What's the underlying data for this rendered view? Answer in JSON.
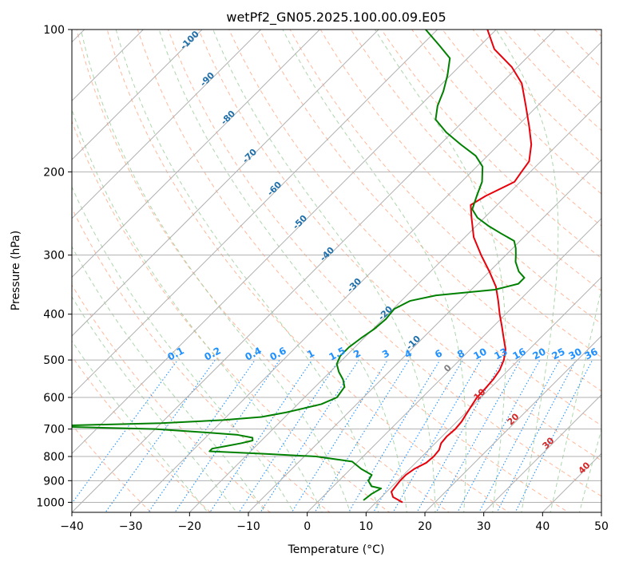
{
  "chart_data": {
    "type": "line",
    "title": "wetPf2_GN05.2025.100.00.09.E05",
    "xlabel": "Temperature (°C)",
    "ylabel": "Pressure (hPa)",
    "xlim": [
      -40,
      50
    ],
    "ylim": [
      1050,
      100
    ],
    "y_scale": "log",
    "skew": "skew-T",
    "grid": true,
    "x_ticks": [
      -40,
      -30,
      -20,
      -10,
      0,
      10,
      20,
      30,
      40,
      50
    ],
    "y_ticks": [
      100,
      200,
      300,
      400,
      500,
      600,
      700,
      800,
      900,
      1000
    ],
    "series": [
      {
        "color": "#e8000b",
        "points": [
          [
            1000,
            14.5
          ],
          [
            975,
            12.0
          ],
          [
            950,
            10.8
          ],
          [
            925,
            10.6
          ],
          [
            900,
            10.4
          ],
          [
            875,
            10.4
          ],
          [
            850,
            10.8
          ],
          [
            825,
            11.8
          ],
          [
            800,
            12.0
          ],
          [
            775,
            11.8
          ],
          [
            750,
            11.0
          ],
          [
            725,
            10.8
          ],
          [
            700,
            11.0
          ],
          [
            675,
            10.8
          ],
          [
            650,
            10.3
          ],
          [
            625,
            9.8
          ],
          [
            600,
            9.3
          ],
          [
            575,
            9.2
          ],
          [
            550,
            9.0
          ],
          [
            525,
            8.5
          ],
          [
            500,
            7.5
          ],
          [
            475,
            6.0
          ],
          [
            450,
            3.8
          ],
          [
            425,
            1.5
          ],
          [
            400,
            -1.0
          ],
          [
            375,
            -3.5
          ],
          [
            350,
            -6.3
          ],
          [
            325,
            -10.0
          ],
          [
            300,
            -14.2
          ],
          [
            275,
            -18.5
          ],
          [
            250,
            -22.2
          ],
          [
            235,
            -24.5
          ],
          [
            225,
            -23.5
          ],
          [
            210,
            -21.0
          ],
          [
            200,
            -21.5
          ],
          [
            190,
            -22.0
          ],
          [
            175,
            -24.5
          ],
          [
            160,
            -28.0
          ],
          [
            145,
            -32.0
          ],
          [
            130,
            -36.5
          ],
          [
            120,
            -41.0
          ],
          [
            110,
            -47.0
          ],
          [
            100,
            -51.5
          ]
        ]
      },
      {
        "color": "#008000",
        "points": [
          [
            990,
            7.5
          ],
          [
            960,
            7.8
          ],
          [
            935,
            8.5
          ],
          [
            925,
            6.5
          ],
          [
            900,
            5.0
          ],
          [
            875,
            4.6
          ],
          [
            850,
            1.8
          ],
          [
            820,
            -1.0
          ],
          [
            800,
            -8.0
          ],
          [
            790,
            -17.0
          ],
          [
            780,
            -27.0
          ],
          [
            770,
            -27.0
          ],
          [
            760,
            -25.0
          ],
          [
            750,
            -23.0
          ],
          [
            740,
            -21.5
          ],
          [
            730,
            -22.0
          ],
          [
            720,
            -25.0
          ],
          [
            710,
            -32.0
          ],
          [
            700,
            -40.0
          ],
          [
            690,
            -60.0
          ],
          [
            680,
            -40.0
          ],
          [
            670,
            -30.0
          ],
          [
            660,
            -24.0
          ],
          [
            645,
            -20.5
          ],
          [
            620,
            -16.0
          ],
          [
            600,
            -14.5
          ],
          [
            570,
            -15.0
          ],
          [
            550,
            -16.5
          ],
          [
            530,
            -18.5
          ],
          [
            510,
            -20.2
          ],
          [
            490,
            -21.0
          ],
          [
            470,
            -21.0
          ],
          [
            450,
            -20.5
          ],
          [
            430,
            -19.8
          ],
          [
            410,
            -19.5
          ],
          [
            390,
            -19.8
          ],
          [
            375,
            -18.5
          ],
          [
            365,
            -15.0
          ],
          [
            355,
            -6.0
          ],
          [
            345,
            -3.0
          ],
          [
            335,
            -3.0
          ],
          [
            325,
            -5.0
          ],
          [
            310,
            -7.2
          ],
          [
            300,
            -8.3
          ],
          [
            290,
            -9.5
          ],
          [
            280,
            -11.0
          ],
          [
            270,
            -14.5
          ],
          [
            260,
            -18.0
          ],
          [
            250,
            -21.2
          ],
          [
            240,
            -23.5
          ],
          [
            225,
            -25.0
          ],
          [
            210,
            -26.5
          ],
          [
            195,
            -29.0
          ],
          [
            185,
            -32.0
          ],
          [
            175,
            -36.5
          ],
          [
            165,
            -41.0
          ],
          [
            155,
            -45.0
          ],
          [
            145,
            -47.0
          ],
          [
            135,
            -48.5
          ],
          [
            125,
            -50.5
          ],
          [
            115,
            -53.0
          ],
          [
            108,
            -57.0
          ],
          [
            100,
            -62.0
          ]
        ]
      }
    ],
    "isotherm_labels": [
      "-100",
      "-90",
      "-80",
      "-70",
      "-60",
      "-50",
      "-40",
      "-30",
      "-20",
      "-10"
    ],
    "isotherm_label_values": [
      -100,
      -90,
      -80,
      -70,
      -60,
      -50,
      -40,
      -30,
      -20,
      -10
    ],
    "mixing_ratio_labels": [
      "0.1",
      "0.2",
      "0.4",
      "0.6",
      "1",
      "1.5",
      "2",
      "3",
      "4",
      "6",
      "8",
      "10",
      "13",
      "16",
      "20",
      "25",
      "30",
      "36"
    ],
    "mixing_ratio_values": [
      0.1,
      0.2,
      0.4,
      0.6,
      1,
      1.5,
      2,
      3,
      4,
      6,
      8,
      10,
      13,
      16,
      20,
      25,
      30,
      36
    ],
    "warm_isotherm_labels": [
      "0",
      "10",
      "20",
      "30",
      "40"
    ],
    "warm_isotherm_values": [
      0,
      10,
      20,
      30,
      40
    ],
    "colors": {
      "temperature": "#e8000b",
      "dewpoint": "#008000",
      "isotherm_label": "#1f6faa",
      "mixing_ratio": "#1e90ff",
      "warm_label": "#d62728",
      "zero_label": "#808080",
      "dry_adiabat": "#ffa07a",
      "moist_adiabat": "#90c890",
      "grid": "#b0b0b0"
    }
  }
}
